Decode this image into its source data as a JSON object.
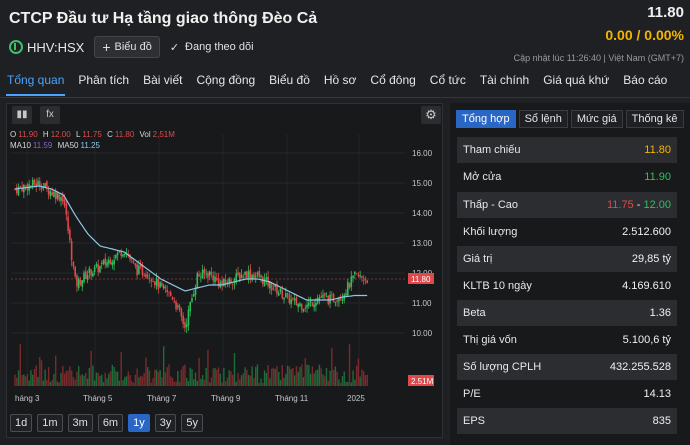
{
  "header": {
    "company": "CTCP Đầu tư Hạ tầng giao thông Đèo Cả",
    "ticker": "HHV:HSX",
    "chart_button": "Biểu đồ",
    "follow_label": "Đang theo dõi",
    "price": "11.80",
    "change": "0.00 / 0.00%",
    "updated": "Cập nhật lúc  11:26:40 | Việt Nam (GMT+7)"
  },
  "nav": {
    "tabs": [
      "Tổng quan",
      "Phân tích",
      "Bài viết",
      "Cộng đồng",
      "Biểu đồ",
      "Hồ sơ",
      "Cổ đông",
      "Cổ tức",
      "Tài chính",
      "Giá quá khứ",
      "Báo cáo"
    ]
  },
  "chart": {
    "tool_candle_icon": "candlestick-icon",
    "tool_fx_label": "fx",
    "settings_icon": "gear-icon",
    "ohlc": {
      "o_key": "O",
      "o": "11.90",
      "h_key": "H",
      "h": "12.00",
      "l_key": "L",
      "l": "11.75",
      "c_key": "C",
      "c": "11.80",
      "vol_key": "Vol",
      "vol": "2,51M"
    },
    "ma": {
      "ma10_key": "MA10",
      "ma10": "11.59",
      "ma50_key": "MA50",
      "ma50": "11.25"
    },
    "ranges": [
      "1d",
      "1m",
      "3m",
      "6m",
      "1y",
      "3y",
      "5y"
    ],
    "active_range": "1y"
  },
  "chart_data": {
    "type": "candlestick",
    "y_ticks": [
      "16.00",
      "15.00",
      "14.00",
      "13.00",
      "12.00",
      "11.00",
      "10.00"
    ],
    "ylim": [
      9.3,
      16.3
    ],
    "x_ticks": [
      "háng 3",
      "Tháng 5",
      "Tháng 7",
      "Tháng 9",
      "Tháng 11",
      "2025"
    ],
    "price_label": "11.80",
    "volume_label": "2.51M",
    "close_trend": [
      14.8,
      14.9,
      15.0,
      14.7,
      14.5,
      11.6,
      12.0,
      12.2,
      12.5,
      12.8,
      12.1,
      12.0,
      11.5,
      11.2,
      10.2,
      11.9,
      12.0,
      11.6,
      11.8,
      12.0,
      11.9,
      11.6,
      11.3,
      11.0,
      10.9,
      11.2,
      11.1,
      11.3,
      11.9,
      11.8
    ],
    "ma50_trend": [
      14.8,
      14.85,
      14.9,
      14.8,
      14.6,
      13.9,
      13.3,
      12.9,
      12.8,
      12.7,
      12.4,
      12.1,
      11.8,
      11.6,
      11.4,
      11.5,
      11.6,
      11.6,
      11.7,
      11.8,
      11.8,
      11.7,
      11.5,
      11.3,
      11.1,
      11.1,
      11.1,
      11.2,
      11.25,
      11.25
    ],
    "series": [
      {
        "name": "MA10"
      },
      {
        "name": "MA50"
      }
    ]
  },
  "stats": {
    "tabs": [
      "Tổng hợp",
      "Sổ lệnh",
      "Mức giá",
      "Thống kê"
    ],
    "active_tab": "Tổng hợp",
    "rows": [
      {
        "label": "Tham chiếu",
        "value": "11.80",
        "color": "#f5b400"
      },
      {
        "label": "Mở cửa",
        "value": "11.90",
        "color": "#2fbf5a"
      },
      {
        "label": "Thấp - Cao",
        "value": "11.75",
        "value2": "12.00",
        "sep": " - "
      },
      {
        "label": "Khối lượng",
        "value": "2.512.600"
      },
      {
        "label": "Giá trị",
        "value": "29,85 tỷ"
      },
      {
        "label": "KLTB 10 ngày",
        "value": "4.169.610"
      },
      {
        "label": "Beta",
        "value": "1.36"
      },
      {
        "label": "Thị giá vốn",
        "value": "5.100,6 tỷ"
      },
      {
        "label": "Số lượng CPLH",
        "value": "432.255.528"
      },
      {
        "label": "P/E",
        "value": "14.13"
      },
      {
        "label": "EPS",
        "value": "835"
      }
    ]
  },
  "colors": {
    "accent": "#2a66c5",
    "up": "#2fbf5a",
    "down": "#e0494b",
    "ref": "#f5b400",
    "ma50": "#8fc7e8",
    "ma10": "#8f5fd1"
  }
}
